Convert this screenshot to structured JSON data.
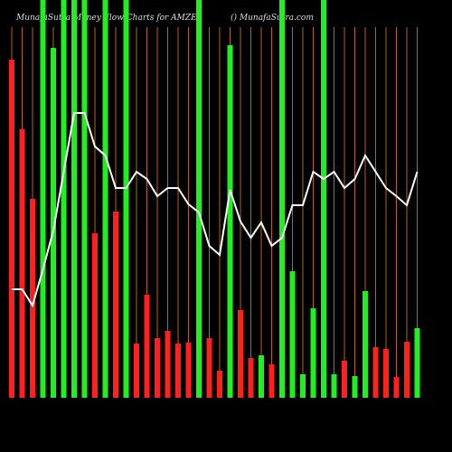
{
  "chart_data": {
    "type": "bar",
    "title": "MunafaSutra Money Flow Charts for AMZE",
    "subtitle": "() MunafaSutra.com",
    "ylim": [
      0,
      440
    ],
    "bar_colors": [
      "#ff2020",
      "#ff2020",
      "#ff2020",
      "#22ee22",
      "#22ee22",
      "#22ee22",
      "#22ee22",
      "#22ee22",
      "#ff2020",
      "#22ee22",
      "#ff2020",
      "#22ee22",
      "#ff2020",
      "#ff2020",
      "#ff2020",
      "#ff2020",
      "#ff2020",
      "#ff2020",
      "#22ee22",
      "#ff2020",
      "#ff2020",
      "#22ee22",
      "#ff2020",
      "#ff2020",
      "#22ee22",
      "#ff2020",
      "#22ee22",
      "#22ee22",
      "#22ee22",
      "#22ee22",
      "#22ee22",
      "#22ee22",
      "#ff2020",
      "#22ee22",
      "#22ee22",
      "#ff2020",
      "#ff2020",
      "#ff2020",
      "#ff2020",
      "#22ee22"
    ],
    "values": [
      374,
      297,
      220,
      440,
      387,
      440,
      440,
      440,
      182,
      440,
      206,
      440,
      60,
      114,
      66,
      74,
      60,
      61,
      440,
      66,
      30,
      390,
      97,
      44,
      47,
      37,
      440,
      140,
      26,
      99,
      440,
      26,
      41,
      24,
      118,
      56,
      54,
      23,
      62,
      77
    ],
    "line": {
      "color": "#ffffff",
      "values": [
        120,
        120,
        102,
        142,
        185,
        250,
        315,
        315,
        278,
        268,
        232,
        232,
        250,
        242,
        223,
        232,
        232,
        214,
        205,
        168,
        158,
        230,
        195,
        177,
        194,
        168,
        177,
        213,
        213,
        250,
        242,
        250,
        232,
        242,
        268,
        250,
        232,
        223,
        213,
        250
      ]
    }
  }
}
